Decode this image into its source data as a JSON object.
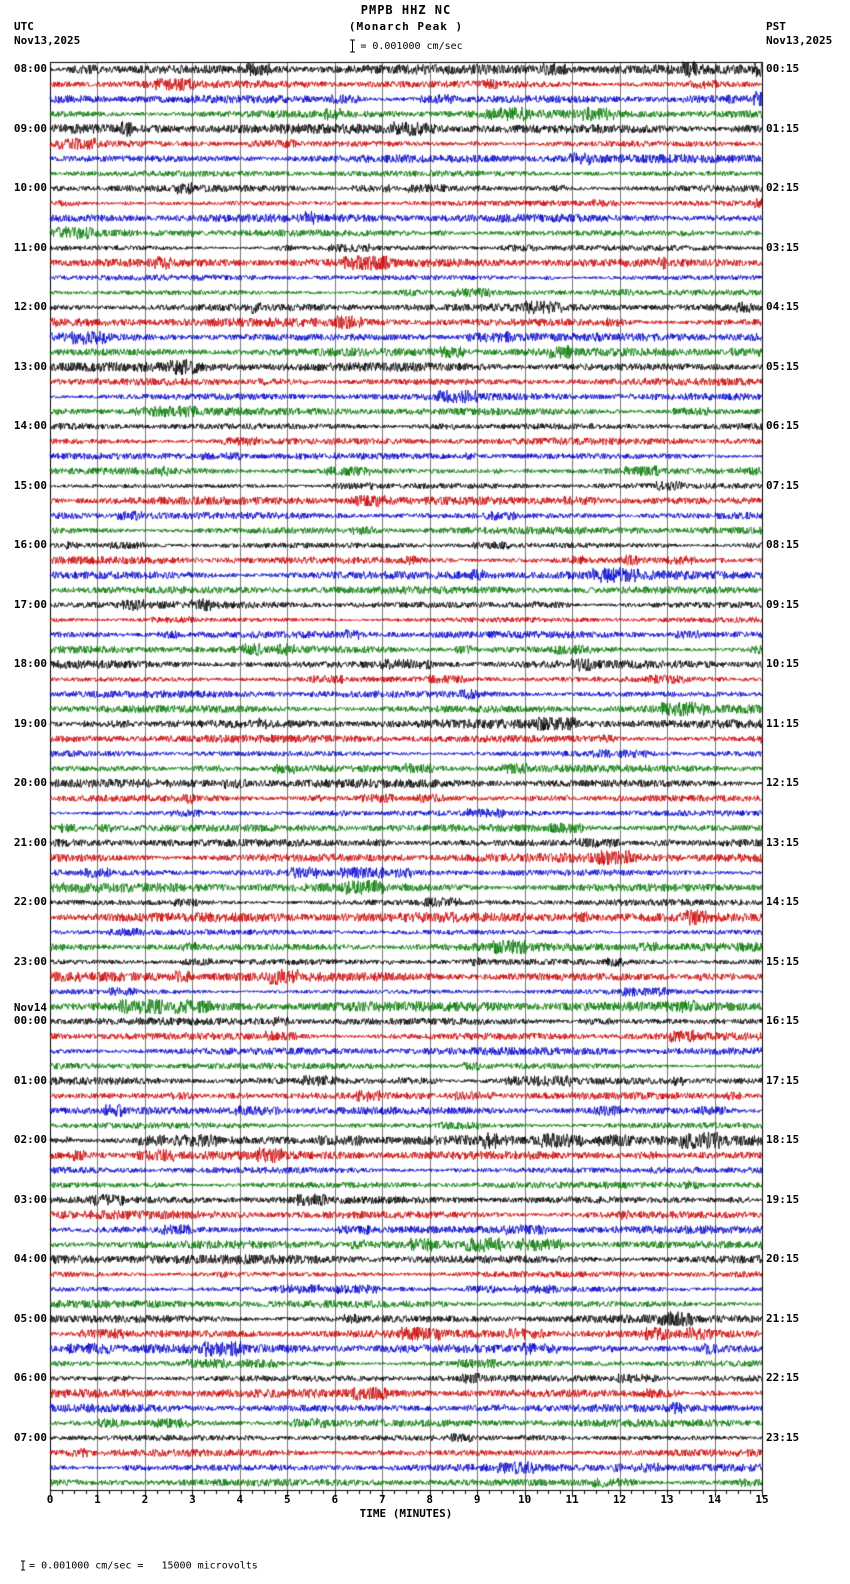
{
  "header": {
    "title": "PMPB HHZ NC",
    "subtitle": "(Monarch Peak )",
    "left_tz": "UTC",
    "left_date": "Nov13,2025",
    "right_tz": "PST",
    "right_date": "Nov13,2025",
    "scale_label": "= 0.001000 cm/sec"
  },
  "axis": {
    "xlabel": "TIME (MINUTES)",
    "x_ticks": [
      "0",
      "1",
      "2",
      "3",
      "4",
      "5",
      "6",
      "7",
      "8",
      "9",
      "10",
      "11",
      "12",
      "13",
      "14",
      "15"
    ]
  },
  "footer": {
    "scale_note": "= 0.001000 cm/sec =   15000 microvolts"
  },
  "colors": {
    "background": "#ffffff",
    "grid": "#777777",
    "border": "#000000"
  },
  "chart_data": {
    "type": "line",
    "title": "PMPB HHZ NC",
    "subtitle": "(Monarch Peak )",
    "xlabel": "TIME (MINUTES)",
    "x_range": [
      0,
      15
    ],
    "minutes_per_row": 15,
    "rows_per_hour": 4,
    "row_colors": [
      "#000000",
      "#cc0000",
      "#0000cc",
      "#007700"
    ],
    "amplitude_scale": "0.001000 cm/sec",
    "sensitivity": "15000 microvolts",
    "hours": [
      {
        "utc": "08:00",
        "pst": "00:15"
      },
      {
        "utc": "09:00",
        "pst": "01:15"
      },
      {
        "utc": "10:00",
        "pst": "02:15"
      },
      {
        "utc": "11:00",
        "pst": "03:15"
      },
      {
        "utc": "12:00",
        "pst": "04:15"
      },
      {
        "utc": "13:00",
        "pst": "05:15"
      },
      {
        "utc": "14:00",
        "pst": "06:15"
      },
      {
        "utc": "15:00",
        "pst": "07:15"
      },
      {
        "utc": "16:00",
        "pst": "08:15"
      },
      {
        "utc": "17:00",
        "pst": "09:15"
      },
      {
        "utc": "18:00",
        "pst": "10:15"
      },
      {
        "utc": "19:00",
        "pst": "11:15"
      },
      {
        "utc": "20:00",
        "pst": "12:15"
      },
      {
        "utc": "21:00",
        "pst": "13:15"
      },
      {
        "utc": "22:00",
        "pst": "14:15"
      },
      {
        "utc": "23:00",
        "pst": "15:15"
      },
      {
        "utc": "00:00",
        "pst": "16:15",
        "date_marker": "Nov14"
      },
      {
        "utc": "01:00",
        "pst": "17:15"
      },
      {
        "utc": "02:00",
        "pst": "18:15"
      },
      {
        "utc": "03:00",
        "pst": "19:15"
      },
      {
        "utc": "04:00",
        "pst": "20:15"
      },
      {
        "utc": "05:00",
        "pst": "21:15"
      },
      {
        "utc": "06:00",
        "pst": "22:15"
      },
      {
        "utc": "07:00",
        "pst": "23:15"
      }
    ]
  }
}
